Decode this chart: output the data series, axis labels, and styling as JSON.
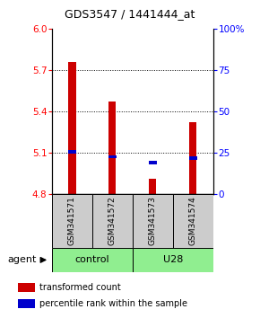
{
  "title": "GDS3547 / 1441444_at",
  "samples": [
    "GSM341571",
    "GSM341572",
    "GSM341573",
    "GSM341574"
  ],
  "bar_values": [
    5.76,
    5.47,
    4.91,
    5.32
  ],
  "percentile_values": [
    5.105,
    5.07,
    5.03,
    5.06
  ],
  "bar_bottom": 4.8,
  "ylim_left": [
    4.8,
    6.0
  ],
  "ylim_right": [
    0,
    100
  ],
  "yticks_left": [
    4.8,
    5.1,
    5.4,
    5.7,
    6.0
  ],
  "yticks_right": [
    0,
    25,
    50,
    75,
    100
  ],
  "ytick_right_labels": [
    "0",
    "25",
    "50",
    "75",
    "100%"
  ],
  "groups": [
    {
      "label": "control",
      "samples": [
        0,
        1
      ],
      "color": "#90EE90"
    },
    {
      "label": "U28",
      "samples": [
        2,
        3
      ],
      "color": "#90EE90"
    }
  ],
  "bar_color": "#CC0000",
  "percentile_color": "#0000CC",
  "bar_width": 0.18,
  "label_area_color": "#cccccc",
  "agent_label": "agent"
}
